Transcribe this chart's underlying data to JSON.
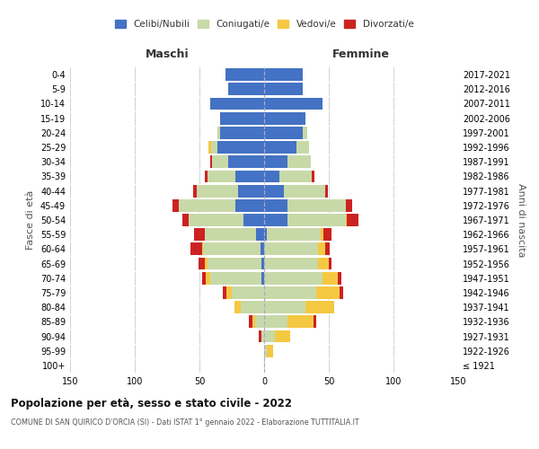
{
  "age_groups": [
    "100+",
    "95-99",
    "90-94",
    "85-89",
    "80-84",
    "75-79",
    "70-74",
    "65-69",
    "60-64",
    "55-59",
    "50-54",
    "45-49",
    "40-44",
    "35-39",
    "30-34",
    "25-29",
    "20-24",
    "15-19",
    "10-14",
    "5-9",
    "0-4"
  ],
  "birth_years": [
    "≤ 1921",
    "1922-1926",
    "1927-1931",
    "1932-1936",
    "1937-1941",
    "1942-1946",
    "1947-1951",
    "1952-1956",
    "1957-1961",
    "1962-1966",
    "1967-1971",
    "1972-1976",
    "1977-1981",
    "1982-1986",
    "1987-1991",
    "1992-1996",
    "1997-2001",
    "2002-2006",
    "2007-2011",
    "2012-2016",
    "2017-2021"
  ],
  "male": {
    "celibi": [
      0,
      0,
      0,
      0,
      0,
      0,
      2,
      2,
      3,
      6,
      16,
      22,
      20,
      22,
      28,
      36,
      34,
      34,
      42,
      28,
      30
    ],
    "coniugati": [
      0,
      0,
      2,
      7,
      18,
      25,
      40,
      42,
      44,
      40,
      42,
      44,
      32,
      22,
      12,
      5,
      2,
      0,
      0,
      0,
      0
    ],
    "vedovi": [
      0,
      0,
      0,
      2,
      5,
      4,
      3,
      2,
      1,
      0,
      0,
      0,
      0,
      0,
      0,
      2,
      0,
      0,
      0,
      0,
      0
    ],
    "divorziati": [
      0,
      0,
      2,
      3,
      0,
      3,
      3,
      5,
      9,
      8,
      5,
      5,
      3,
      2,
      2,
      0,
      0,
      0,
      0,
      0,
      0
    ]
  },
  "female": {
    "nubili": [
      0,
      0,
      0,
      0,
      0,
      0,
      0,
      0,
      0,
      2,
      18,
      18,
      15,
      12,
      18,
      25,
      30,
      32,
      45,
      30,
      30
    ],
    "coniugate": [
      0,
      2,
      8,
      18,
      32,
      40,
      45,
      42,
      42,
      42,
      45,
      45,
      32,
      25,
      18,
      10,
      3,
      0,
      0,
      0,
      0
    ],
    "vedove": [
      0,
      5,
      12,
      20,
      22,
      18,
      12,
      8,
      5,
      2,
      1,
      0,
      0,
      0,
      0,
      0,
      0,
      0,
      0,
      0,
      0
    ],
    "divorziate": [
      0,
      0,
      0,
      2,
      0,
      3,
      3,
      2,
      4,
      6,
      9,
      5,
      2,
      2,
      0,
      0,
      0,
      0,
      0,
      0,
      0
    ]
  },
  "colors": {
    "celibi": "#4472C4",
    "coniugati": "#c8d9a8",
    "vedovi": "#f5c842",
    "divorziati": "#cc2222"
  },
  "title": "Popolazione per età, sesso e stato civile - 2022",
  "subtitle": "COMUNE DI SAN QUIRICO D'ORCIA (SI) - Dati ISTAT 1° gennaio 2022 - Elaborazione TUTTITALIA.IT",
  "xlabel_left": "Maschi",
  "xlabel_right": "Femmine",
  "ylabel_left": "Fasce di età",
  "ylabel_right": "Anni di nascita",
  "xlim": 150,
  "bg_color": "#ffffff",
  "grid_color": "#cccccc"
}
